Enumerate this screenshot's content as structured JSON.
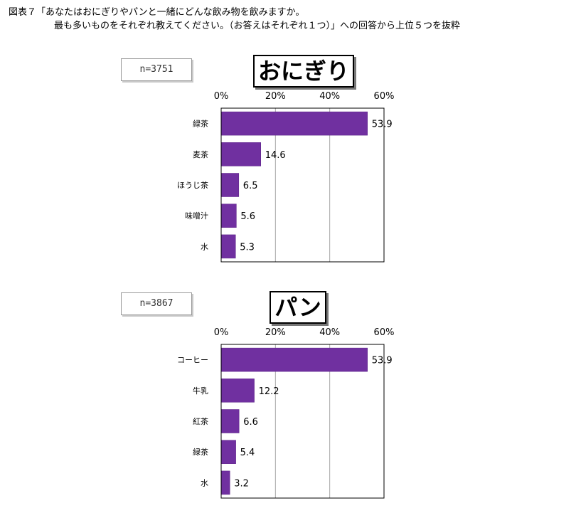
{
  "caption": {
    "line1": "図表７「あなたはおにぎりやパンと一緒にどんな飲み物を飲みますか。",
    "line2": "最も多いものをそれぞれ教えてください。（お答えはそれぞれ１つ）」への回答から上位５つを抜粋"
  },
  "panels": [
    {
      "title": "おにぎり",
      "n_label": "n=3751"
    },
    {
      "title": "パン",
      "n_label": "n=3867"
    }
  ],
  "colors": {
    "bar": "#7030a0",
    "bar_edge": "#5a1f86",
    "grid": "#a6a6a6"
  },
  "chart_data": [
    {
      "type": "bar",
      "orientation": "horizontal",
      "title": "おにぎり",
      "categories": [
        "緑茶",
        "麦茶",
        "ほうじ茶",
        "味噌汁",
        "水"
      ],
      "values": [
        53.9,
        14.6,
        6.5,
        5.6,
        5.3
      ],
      "xlim": [
        0,
        60
      ],
      "ticks": [
        "0%",
        "20%",
        "40%",
        "60%"
      ],
      "tick_values": [
        0,
        20,
        40,
        60
      ],
      "grid": true
    },
    {
      "type": "bar",
      "orientation": "horizontal",
      "title": "パン",
      "categories": [
        "コーヒー",
        "牛乳",
        "紅茶",
        "緑茶",
        "水"
      ],
      "values": [
        53.9,
        12.2,
        6.6,
        5.4,
        3.2
      ],
      "xlim": [
        0,
        60
      ],
      "ticks": [
        "0%",
        "20%",
        "40%",
        "60%"
      ],
      "tick_values": [
        0,
        20,
        40,
        60
      ],
      "grid": true
    }
  ]
}
